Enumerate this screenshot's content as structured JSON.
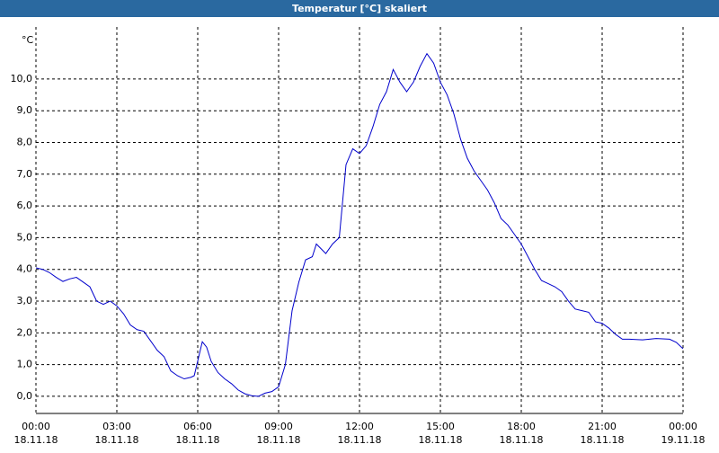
{
  "chart_data": {
    "type": "line",
    "title": "Temperatur [°C] skaliert",
    "ylabel": "°C",
    "x": [
      0,
      0.25,
      0.5,
      0.75,
      1,
      1.25,
      1.5,
      1.75,
      2,
      2.25,
      2.5,
      2.75,
      3,
      3.25,
      3.5,
      3.75,
      4,
      4.25,
      4.5,
      4.75,
      5,
      5.25,
      5.5,
      5.75,
      5.87,
      6.17,
      6.33,
      6.5,
      6.75,
      7,
      7.25,
      7.5,
      7.75,
      8,
      8.25,
      8.5,
      8.75,
      9,
      9.25,
      9.5,
      9.75,
      10,
      10.25,
      10.4,
      10.75,
      11,
      11.25,
      11.5,
      11.75,
      12,
      12.25,
      12.5,
      12.75,
      13,
      13.25,
      13.5,
      13.75,
      14,
      14.25,
      14.5,
      14.75,
      15,
      15.25,
      15.5,
      15.75,
      16,
      16.25,
      16.5,
      16.75,
      17,
      17.25,
      17.5,
      17.75,
      18,
      18.25,
      18.5,
      18.75,
      19,
      19.25,
      19.5,
      19.75,
      20,
      20.25,
      20.5,
      20.75,
      21,
      21.25,
      21.5,
      21.75,
      22,
      22.5,
      23,
      23.5,
      23.75,
      24
    ],
    "series": [
      {
        "name": "Temperatur",
        "color": "#0000cc",
        "values": [
          4.05,
          4.0,
          3.9,
          3.75,
          3.62,
          3.7,
          3.75,
          3.6,
          3.45,
          3.0,
          2.9,
          3.0,
          2.85,
          2.6,
          2.25,
          2.1,
          2.05,
          1.75,
          1.45,
          1.25,
          0.8,
          0.65,
          0.55,
          0.6,
          0.65,
          1.72,
          1.55,
          1.1,
          0.75,
          0.55,
          0.4,
          0.2,
          0.08,
          0.02,
          0.0,
          0.1,
          0.15,
          0.3,
          1.0,
          2.7,
          3.6,
          4.3,
          4.4,
          4.8,
          4.5,
          4.8,
          5.0,
          7.3,
          7.8,
          7.65,
          7.9,
          8.5,
          9.2,
          9.6,
          10.3,
          9.9,
          9.6,
          9.9,
          10.4,
          10.8,
          10.5,
          9.9,
          9.5,
          8.9,
          8.1,
          7.5,
          7.1,
          6.8,
          6.5,
          6.1,
          5.6,
          5.4,
          5.1,
          4.8,
          4.4,
          4.0,
          3.65,
          3.55,
          3.45,
          3.3,
          3.0,
          2.75,
          2.7,
          2.65,
          2.35,
          2.3,
          2.15,
          1.95,
          1.8,
          1.8,
          1.78,
          1.82,
          1.8,
          1.7,
          1.5
        ]
      }
    ],
    "xlim": [
      0,
      24
    ],
    "xticks": [
      {
        "value": 0,
        "label": "00:00"
      },
      {
        "value": 3,
        "label": "03:00"
      },
      {
        "value": 6,
        "label": "06:00"
      },
      {
        "value": 9,
        "label": "09:00"
      },
      {
        "value": 12,
        "label": "12:00"
      },
      {
        "value": 15,
        "label": "15:00"
      },
      {
        "value": 18,
        "label": "18:00"
      },
      {
        "value": 21,
        "label": "21:00"
      },
      {
        "value": 24,
        "label": "00:00"
      }
    ],
    "xtick_dates": [
      "18.11.18",
      "18.11.18",
      "18.11.18",
      "18.11.18",
      "18.11.18",
      "18.11.18",
      "18.11.18",
      "18.11.18",
      "19.11.18"
    ],
    "ylim": [
      -0.54,
      11.64
    ],
    "yticks": [
      {
        "value": 0,
        "label": "0,0"
      },
      {
        "value": 1,
        "label": "1,0"
      },
      {
        "value": 2,
        "label": "2,0"
      },
      {
        "value": 3,
        "label": "3,0"
      },
      {
        "value": 4,
        "label": "4,0"
      },
      {
        "value": 5,
        "label": "5,0"
      },
      {
        "value": 6,
        "label": "6,0"
      },
      {
        "value": 7,
        "label": "7,0"
      },
      {
        "value": 8,
        "label": "8,0"
      },
      {
        "value": 9,
        "label": "9,0"
      },
      {
        "value": 10,
        "label": "10,0"
      }
    ],
    "grid": true
  }
}
